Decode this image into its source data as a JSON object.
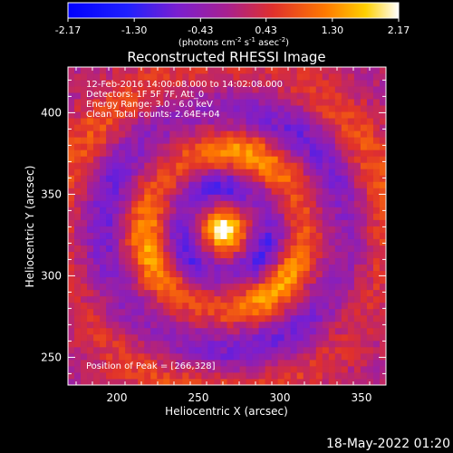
{
  "chart_data": {
    "type": "heatmap",
    "title": "Reconstructed RHESSI Image",
    "xlabel": "Heliocentric X (arcsec)",
    "ylabel": "Heliocentric Y (arcsec)",
    "xlim": [
      170,
      365
    ],
    "ylim": [
      233,
      428
    ],
    "x_ticks": [
      200,
      250,
      300,
      350
    ],
    "y_ticks": [
      250,
      300,
      350,
      400
    ],
    "colorbar": {
      "min": -2.17,
      "max": 2.17,
      "tick_values": [
        -2.17,
        -1.3,
        -0.43,
        0.43,
        1.3,
        2.17
      ],
      "tick_labels": [
        "-2.17",
        "-1.30",
        "-0.43",
        "0.43",
        "1.30",
        "2.17"
      ],
      "units_label": "(photons cm",
      "units_exp1": "-2",
      "units_mid": " s",
      "units_exp2": "-1",
      "units_mid2": " asec",
      "units_exp3": "-2",
      "units_close": ")"
    },
    "annotations": [
      "12-Feb-2016 14:00:08.000 to 14:02:08.000",
      "Detectors: 1F 5F 7F, Att_0",
      "Energy Range: 3.0 - 6.0 keV",
      "Clean     Total counts: 2.64E+04"
    ],
    "peak": {
      "label": "Position of Peak = [266,328]",
      "x": 266,
      "y": 328,
      "value": 2.17
    },
    "pattern": {
      "features": [
        {
          "kind": "ring",
          "center": [
            266,
            328
          ],
          "radius": 48,
          "width": 9,
          "amplitude": 1.5
        },
        {
          "kind": "ring",
          "center": [
            266,
            328
          ],
          "radius": 100,
          "width": 11,
          "amplitude": 0.8
        },
        {
          "kind": "trough",
          "center": [
            266,
            328
          ],
          "radius": 28,
          "width": 8,
          "amplitude": -1.1
        },
        {
          "kind": "trough",
          "center": [
            266,
            328
          ],
          "radius": 75,
          "width": 10,
          "amplitude": -0.8
        }
      ]
    }
  },
  "footer": {
    "timestamp": "18-May-2022 01:20"
  }
}
